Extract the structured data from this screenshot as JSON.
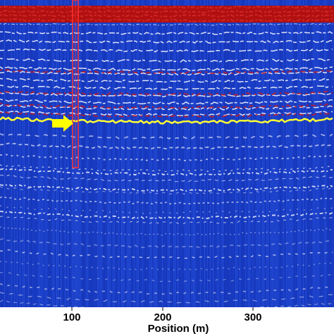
{
  "figure": {
    "type": "radargram",
    "xlabel": "Position (m)",
    "x_ticks": [
      "100",
      "200",
      "300"
    ],
    "colors": {
      "background": "#1a3ec8",
      "background_dark": "#0f2a9e",
      "reflector_white": "#ffffff",
      "reflector_red": "#d01818",
      "surface_band": "#b01010",
      "picked_horizon": "#ffff33",
      "marker_arrow": "#ffff00",
      "highlight_box": "#ff3030"
    },
    "annotations": {
      "arrow": "yellow-arrow-pointing-right",
      "box": "red-vertical-trace-box",
      "horizon": "yellow-picked-reflector"
    }
  }
}
